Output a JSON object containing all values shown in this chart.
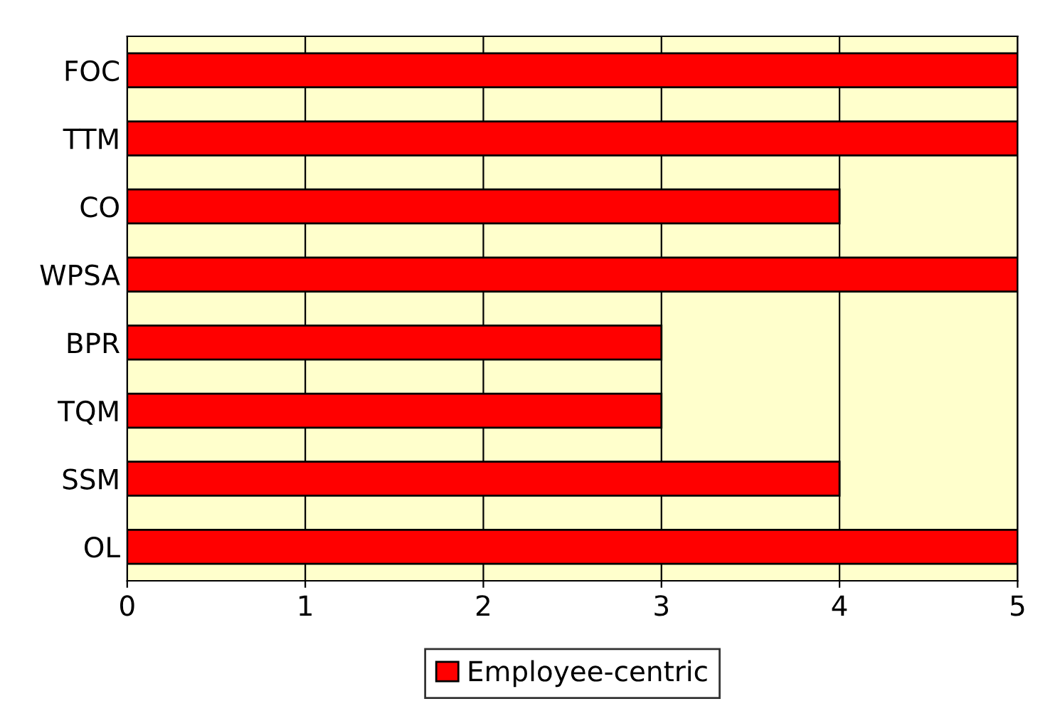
{
  "chart_data": {
    "type": "bar",
    "orientation": "horizontal",
    "categories": [
      "FOC",
      "TTM",
      "CO",
      "WPSA",
      "BPR",
      "TQM",
      "SSM",
      "OL"
    ],
    "series": [
      {
        "name": "Employee-centric",
        "color": "#ff0000",
        "values": [
          5,
          5,
          4,
          5,
          3,
          3,
          4,
          5
        ]
      }
    ],
    "xlim": [
      0,
      5
    ],
    "xticks": [
      0,
      1,
      2,
      3,
      4,
      5
    ],
    "grid": "x",
    "legend": "bottom"
  }
}
